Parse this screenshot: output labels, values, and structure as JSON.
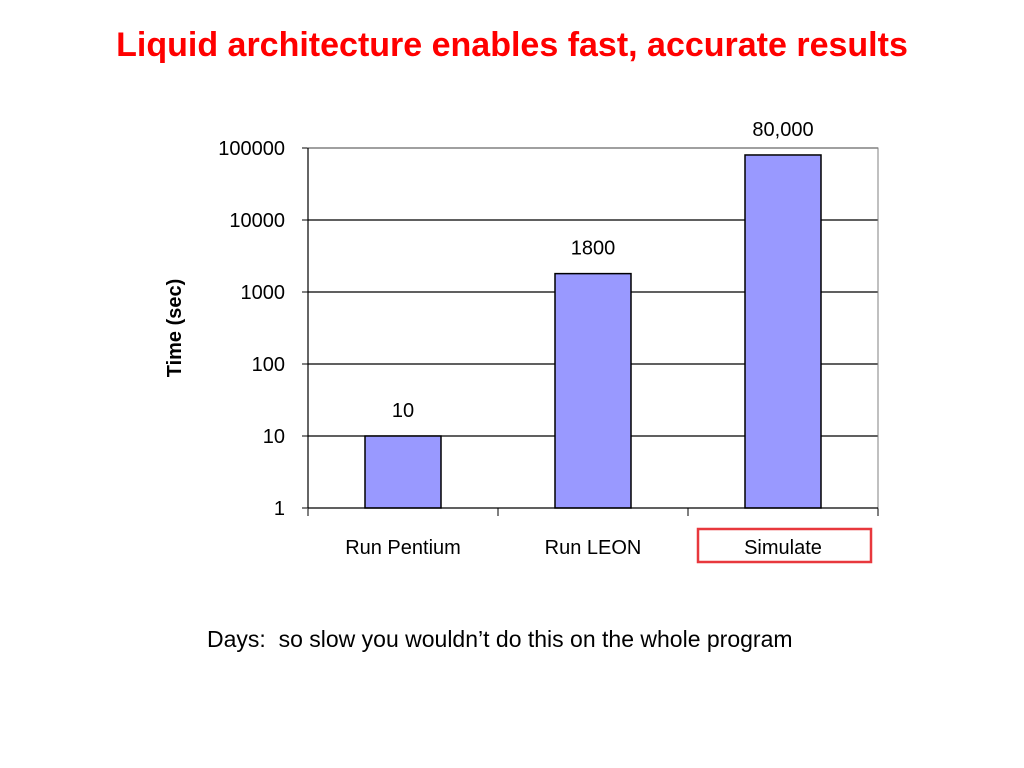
{
  "slide": {
    "title": "Liquid architecture enables fast, accurate results",
    "caption": "Days:  so slow you wouldn’t do this on the whole program"
  },
  "colors": {
    "title": "#ff0000",
    "bar_fill": "#9999ff",
    "bar_stroke": "#000000",
    "highlight_box": "#e8383d"
  },
  "chart_data": {
    "type": "bar",
    "categories": [
      "Run Pentium",
      "Run LEON",
      "Simulate"
    ],
    "values": [
      10,
      1800,
      80000
    ],
    "data_labels": [
      "10",
      "1800",
      "80,000"
    ],
    "ylabel": "Time (sec)",
    "xlabel": "",
    "yscale": "log",
    "ylim": [
      1,
      100000
    ],
    "yticks": [
      "1",
      "10",
      "100",
      "1000",
      "10000",
      "100000"
    ],
    "grid": true,
    "legend": "none",
    "highlighted_category": "Simulate"
  }
}
